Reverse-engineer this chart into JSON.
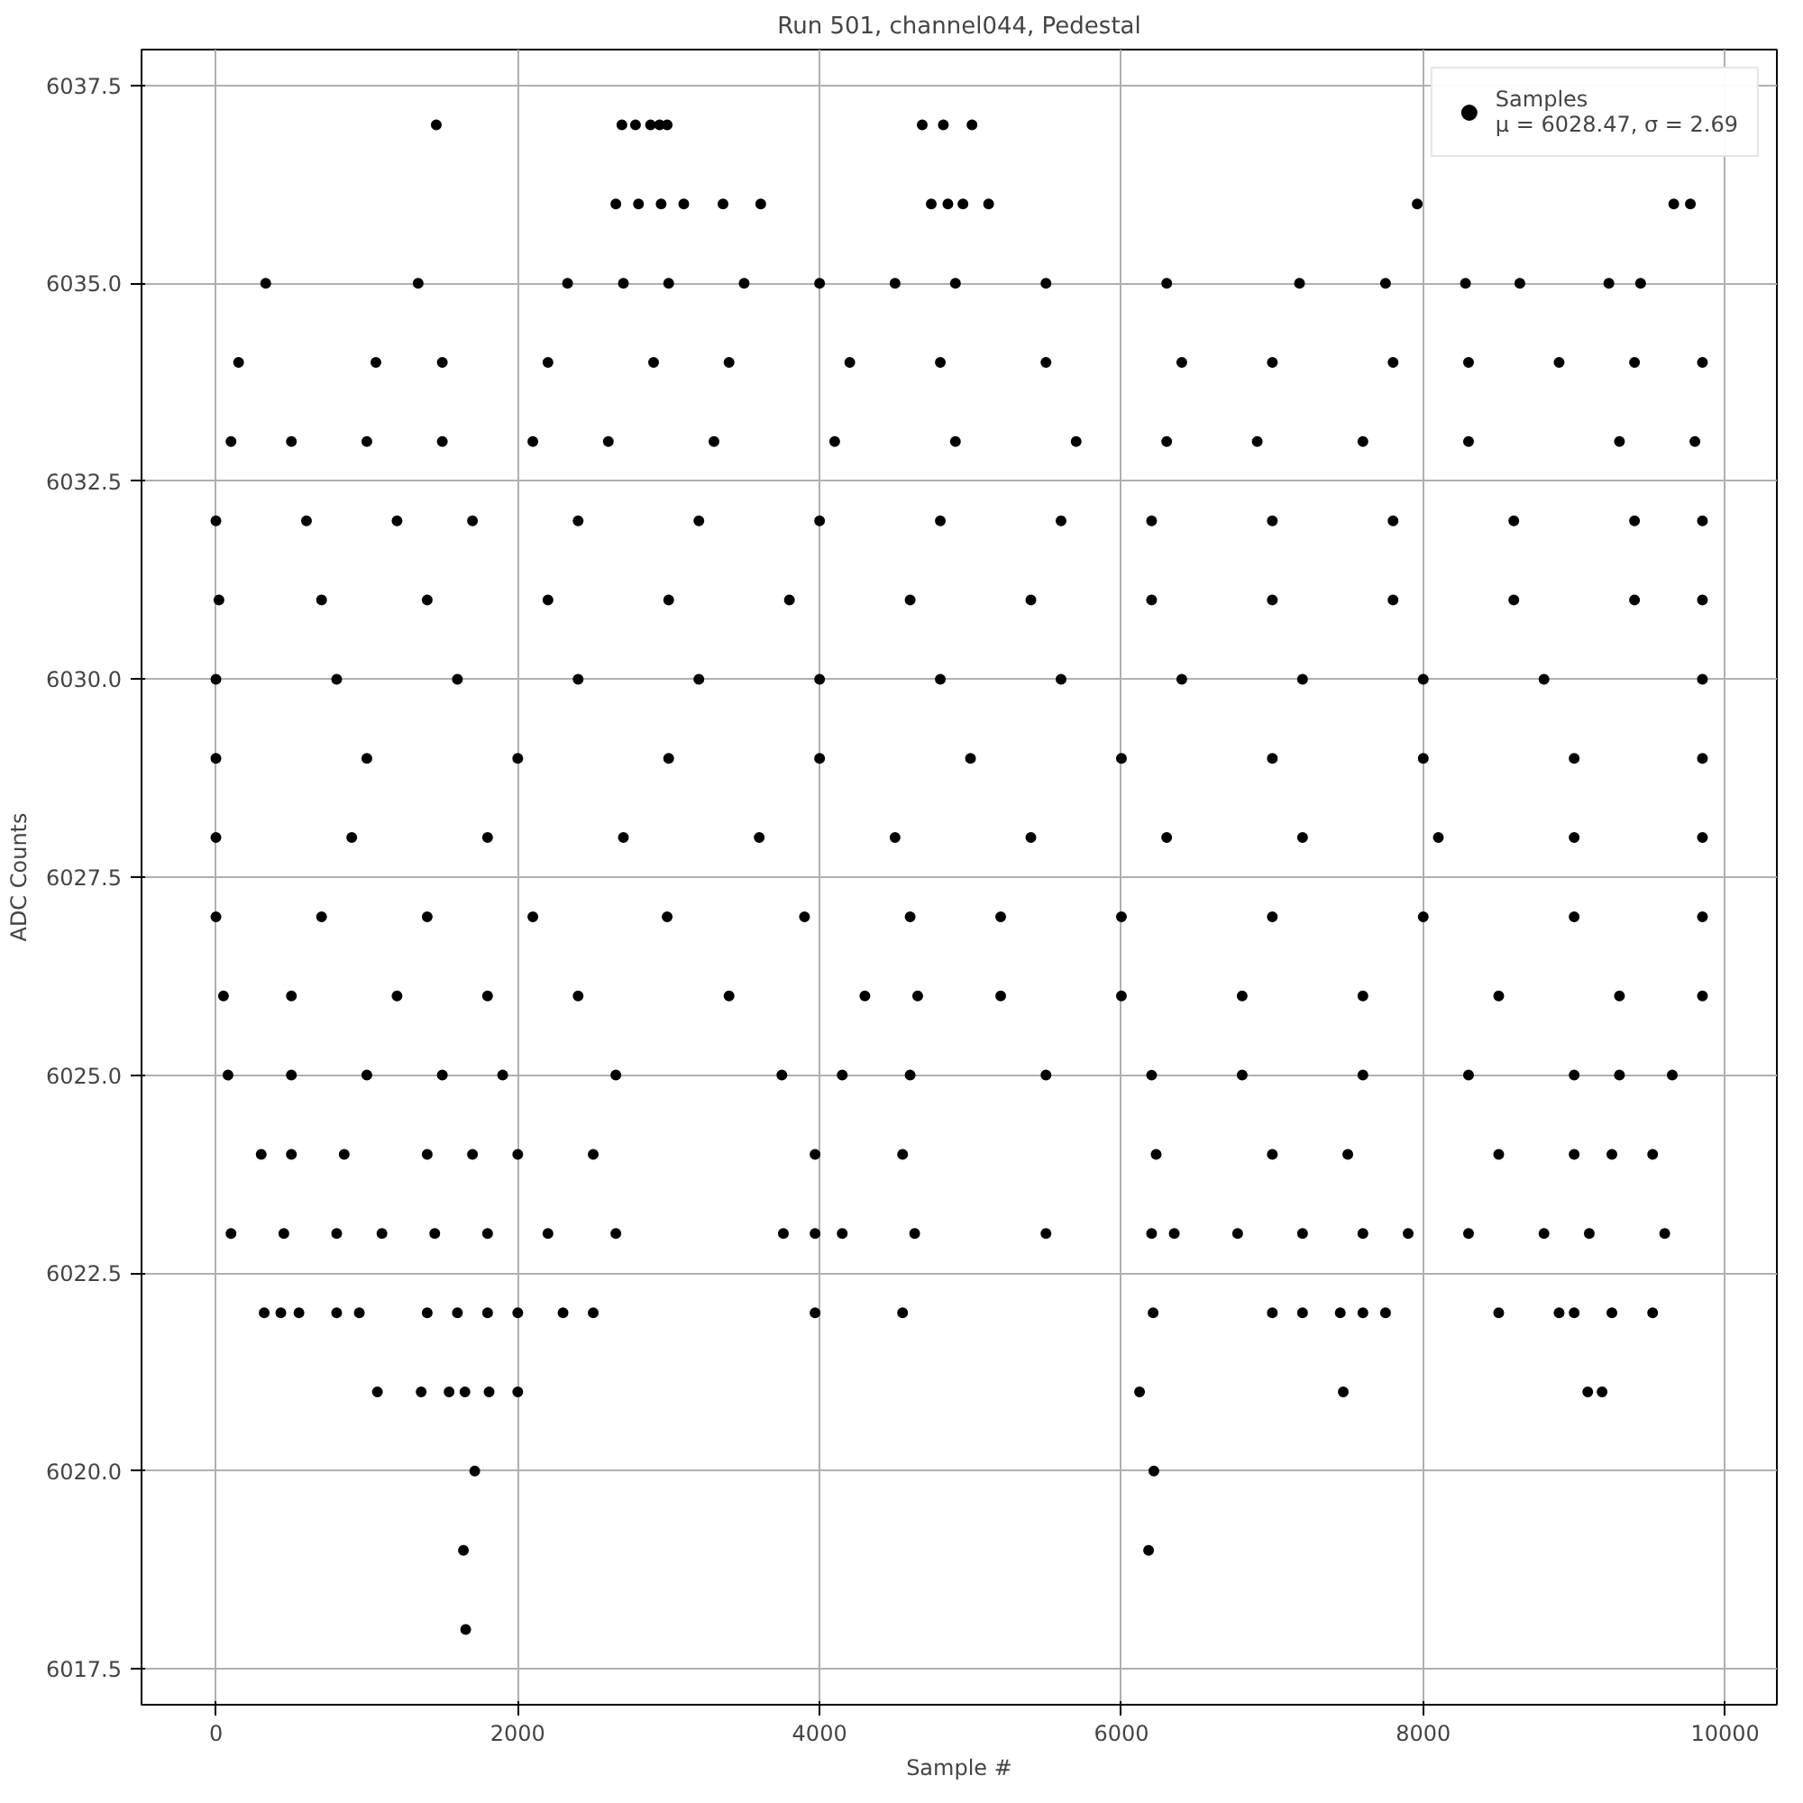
{
  "chart_data": {
    "type": "scatter",
    "title": "Run 501, channel044, Pedestal",
    "xlabel": "Sample #",
    "ylabel": "ADC Counts",
    "xlim": [
      -493,
      10343
    ],
    "ylim": [
      6017.05,
      6037.95
    ],
    "xticks": [
      0,
      2000,
      4000,
      6000,
      8000,
      10000
    ],
    "yticks": [
      6017.5,
      {
        "value": 6020,
        "label": "6020.0"
      },
      6022.5,
      {
        "value": 6025,
        "label": "6025.0"
      },
      {
        "value": 6027.5,
        "label": "6027.5"
      },
      {
        "value": 6030,
        "label": "6030.0"
      },
      6032.5,
      {
        "value": 6035,
        "label": "6035.0"
      },
      6037.5
    ],
    "grid": true,
    "legend": "top right",
    "marker": "circle",
    "series": [
      {
        "name": "Samples\nμ = 6028.47, σ = 2.69",
        "color": "#000000",
        "x": [
          1460,
          2690,
          2780,
          2880,
          2940,
          2990,
          4680,
          4820,
          5010,
          2650,
          2800,
          2950,
          3100,
          3360,
          3610,
          4740,
          4850,
          4950,
          5120,
          7960,
          9660,
          9770,
          330,
          1340,
          2330,
          2700,
          3000,
          3500,
          4000,
          4500,
          4900,
          5500,
          6300,
          7180,
          7750,
          8280,
          8640,
          9230,
          9440,
          150,
          1060,
          1500,
          2200,
          2900,
          3400,
          4200,
          4800,
          5500,
          6400,
          7000,
          7800,
          8300,
          8900,
          9400,
          9850,
          100,
          500,
          1000,
          1500,
          2100,
          2600,
          3300,
          4100,
          4900,
          5700,
          6300,
          6900,
          7600,
          8300,
          9300,
          9800,
          0,
          600,
          1200,
          1700,
          2400,
          3200,
          4000,
          4800,
          5600,
          6200,
          7000,
          7800,
          8600,
          9400,
          9850,
          20,
          700,
          1400,
          2200,
          3000,
          3800,
          4600,
          5400,
          6200,
          7000,
          7800,
          8600,
          9400,
          9850,
          0,
          800,
          1600,
          2400,
          3200,
          4000,
          4800,
          5600,
          6400,
          7200,
          8000,
          8800,
          9850,
          0,
          1000,
          2000,
          3000,
          4000,
          5000,
          6000,
          7000,
          8000,
          9000,
          9850,
          0,
          900,
          1800,
          2700,
          3600,
          4500,
          5400,
          6300,
          7200,
          8100,
          9000,
          9850,
          0,
          700,
          1400,
          2100,
          2990,
          3900,
          4600,
          5200,
          6000,
          7000,
          8000,
          9000,
          9850,
          50,
          500,
          1200,
          1800,
          2400,
          3400,
          4300,
          4650,
          5200,
          6000,
          6800,
          7600,
          8500,
          9300,
          9850,
          80,
          500,
          1000,
          1500,
          1900,
          2650,
          3750,
          4150,
          4600,
          5500,
          6200,
          6800,
          7600,
          8300,
          9000,
          9300,
          9650,
          300,
          500,
          850,
          1400,
          1700,
          2000,
          2500,
          3970,
          4550,
          6230,
          7000,
          7500,
          8500,
          9000,
          9250,
          9520,
          1070,
          1360,
          1545,
          1650,
          1810,
          2000,
          6120,
          7470,
          9090,
          9185,
          1715,
          6215,
          100,
          450,
          800,
          1100,
          1450,
          1800,
          2200,
          2650,
          3760,
          3970,
          4150,
          4630,
          5500,
          6200,
          6350,
          6770,
          7200,
          7600,
          7900,
          8300,
          8800,
          9100,
          9600,
          320,
          430,
          550,
          800,
          950,
          1400,
          1600,
          1800,
          2000,
          2300,
          2500,
          3970,
          4550,
          6210,
          7000,
          7200,
          7450,
          7600,
          7750,
          8500,
          8900,
          9000,
          9250,
          9520,
          1640,
          6180,
          1655
        ],
        "values": [
          6037,
          6037,
          6037,
          6037,
          6037,
          6037,
          6037,
          6037,
          6037,
          6036,
          6036,
          6036,
          6036,
          6036,
          6036,
          6036,
          6036,
          6036,
          6036,
          6036,
          6036,
          6036,
          6035,
          6035,
          6035,
          6035,
          6035,
          6035,
          6035,
          6035,
          6035,
          6035,
          6035,
          6035,
          6035,
          6035,
          6035,
          6035,
          6035,
          6034,
          6034,
          6034,
          6034,
          6034,
          6034,
          6034,
          6034,
          6034,
          6034,
          6034,
          6034,
          6034,
          6034,
          6034,
          6034,
          6033,
          6033,
          6033,
          6033,
          6033,
          6033,
          6033,
          6033,
          6033,
          6033,
          6033,
          6033,
          6033,
          6033,
          6033,
          6033,
          6032,
          6032,
          6032,
          6032,
          6032,
          6032,
          6032,
          6032,
          6032,
          6032,
          6032,
          6032,
          6032,
          6032,
          6032,
          6031,
          6031,
          6031,
          6031,
          6031,
          6031,
          6031,
          6031,
          6031,
          6031,
          6031,
          6031,
          6031,
          6031,
          6030,
          6030,
          6030,
          6030,
          6030,
          6030,
          6030,
          6030,
          6030,
          6030,
          6030,
          6030,
          6030,
          6029,
          6029,
          6029,
          6029,
          6029,
          6029,
          6029,
          6029,
          6029,
          6029,
          6029,
          6028,
          6028,
          6028,
          6028,
          6028,
          6028,
          6028,
          6028,
          6028,
          6028,
          6028,
          6028,
          6027,
          6027,
          6027,
          6027,
          6027,
          6027,
          6027,
          6027,
          6027,
          6027,
          6027,
          6027,
          6027,
          6026,
          6026,
          6026,
          6026,
          6026,
          6026,
          6026,
          6026,
          6026,
          6026,
          6026,
          6026,
          6026,
          6026,
          6026,
          6025,
          6025,
          6025,
          6025,
          6025,
          6025,
          6025,
          6025,
          6025,
          6025,
          6025,
          6025,
          6025,
          6025,
          6025,
          6025,
          6025,
          6024,
          6024,
          6024,
          6024,
          6024,
          6024,
          6024,
          6024,
          6024,
          6024,
          6024,
          6024,
          6024,
          6024,
          6024,
          6024,
          6021,
          6021,
          6021,
          6021,
          6021,
          6021,
          6021,
          6021,
          6021,
          6021,
          6020,
          6020,
          6023,
          6023,
          6023,
          6023,
          6023,
          6023,
          6023,
          6023,
          6023,
          6023,
          6023,
          6023,
          6023,
          6023,
          6023,
          6023,
          6023,
          6023,
          6023,
          6023,
          6023,
          6023,
          6023,
          6022,
          6022,
          6022,
          6022,
          6022,
          6022,
          6022,
          6022,
          6022,
          6022,
          6022,
          6022,
          6022,
          6022,
          6022,
          6022,
          6022,
          6022,
          6022,
          6022,
          6022,
          6022,
          6022,
          6022,
          6019,
          6019,
          6018
        ]
      }
    ]
  }
}
